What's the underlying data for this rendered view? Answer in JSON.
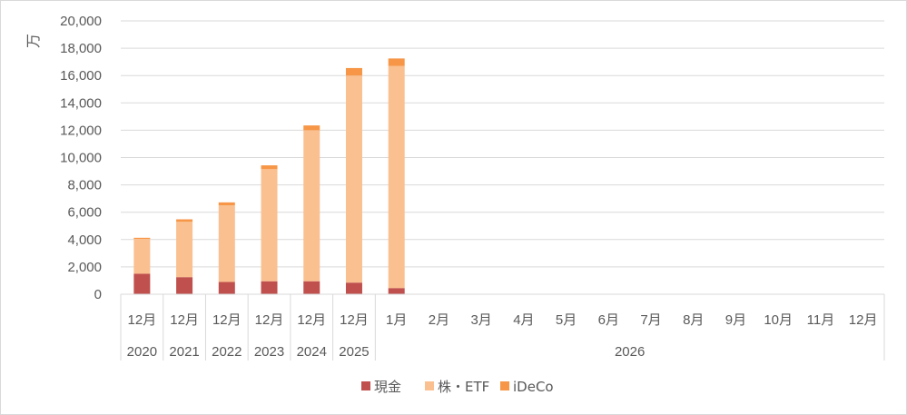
{
  "chart_data": {
    "type": "bar",
    "stacked": true,
    "ylabel": "万",
    "ylim": [
      0,
      20000
    ],
    "yticks": [
      0,
      2000,
      4000,
      6000,
      8000,
      10000,
      12000,
      14000,
      16000,
      18000,
      20000
    ],
    "ytick_labels": [
      "0",
      "2,000",
      "4,000",
      "6,000",
      "8,000",
      "10,000",
      "12,000",
      "14,000",
      "16,000",
      "18,000",
      "20,000"
    ],
    "grid": true,
    "legend_position": "bottom",
    "categories": [
      "12月",
      "12月",
      "12月",
      "12月",
      "12月",
      "12月",
      "1月",
      "2月",
      "3月",
      "4月",
      "5月",
      "6月",
      "7月",
      "8月",
      "9月",
      "10月",
      "11月",
      "12月"
    ],
    "category_groups": [
      {
        "label": "2020",
        "span": 1
      },
      {
        "label": "2021",
        "span": 1
      },
      {
        "label": "2022",
        "span": 1
      },
      {
        "label": "2023",
        "span": 1
      },
      {
        "label": "2024",
        "span": 1
      },
      {
        "label": "2025",
        "span": 1
      },
      {
        "label": "2026",
        "span": 12
      }
    ],
    "series": [
      {
        "name": "現金",
        "color": "#c0504d",
        "values": [
          1500,
          1250,
          900,
          950,
          950,
          850,
          450,
          null,
          null,
          null,
          null,
          null,
          null,
          null,
          null,
          null,
          null,
          null
        ]
      },
      {
        "name": "株・ETF",
        "color": "#fac090",
        "values": [
          2550,
          4050,
          5600,
          8200,
          11050,
          15150,
          16250,
          null,
          null,
          null,
          null,
          null,
          null,
          null,
          null,
          null,
          null,
          null
        ]
      },
      {
        "name": "iDeCo",
        "color": "#f79646",
        "values": [
          80,
          180,
          220,
          280,
          350,
          550,
          550,
          null,
          null,
          null,
          null,
          null,
          null,
          null,
          null,
          null,
          null,
          null
        ]
      }
    ]
  }
}
